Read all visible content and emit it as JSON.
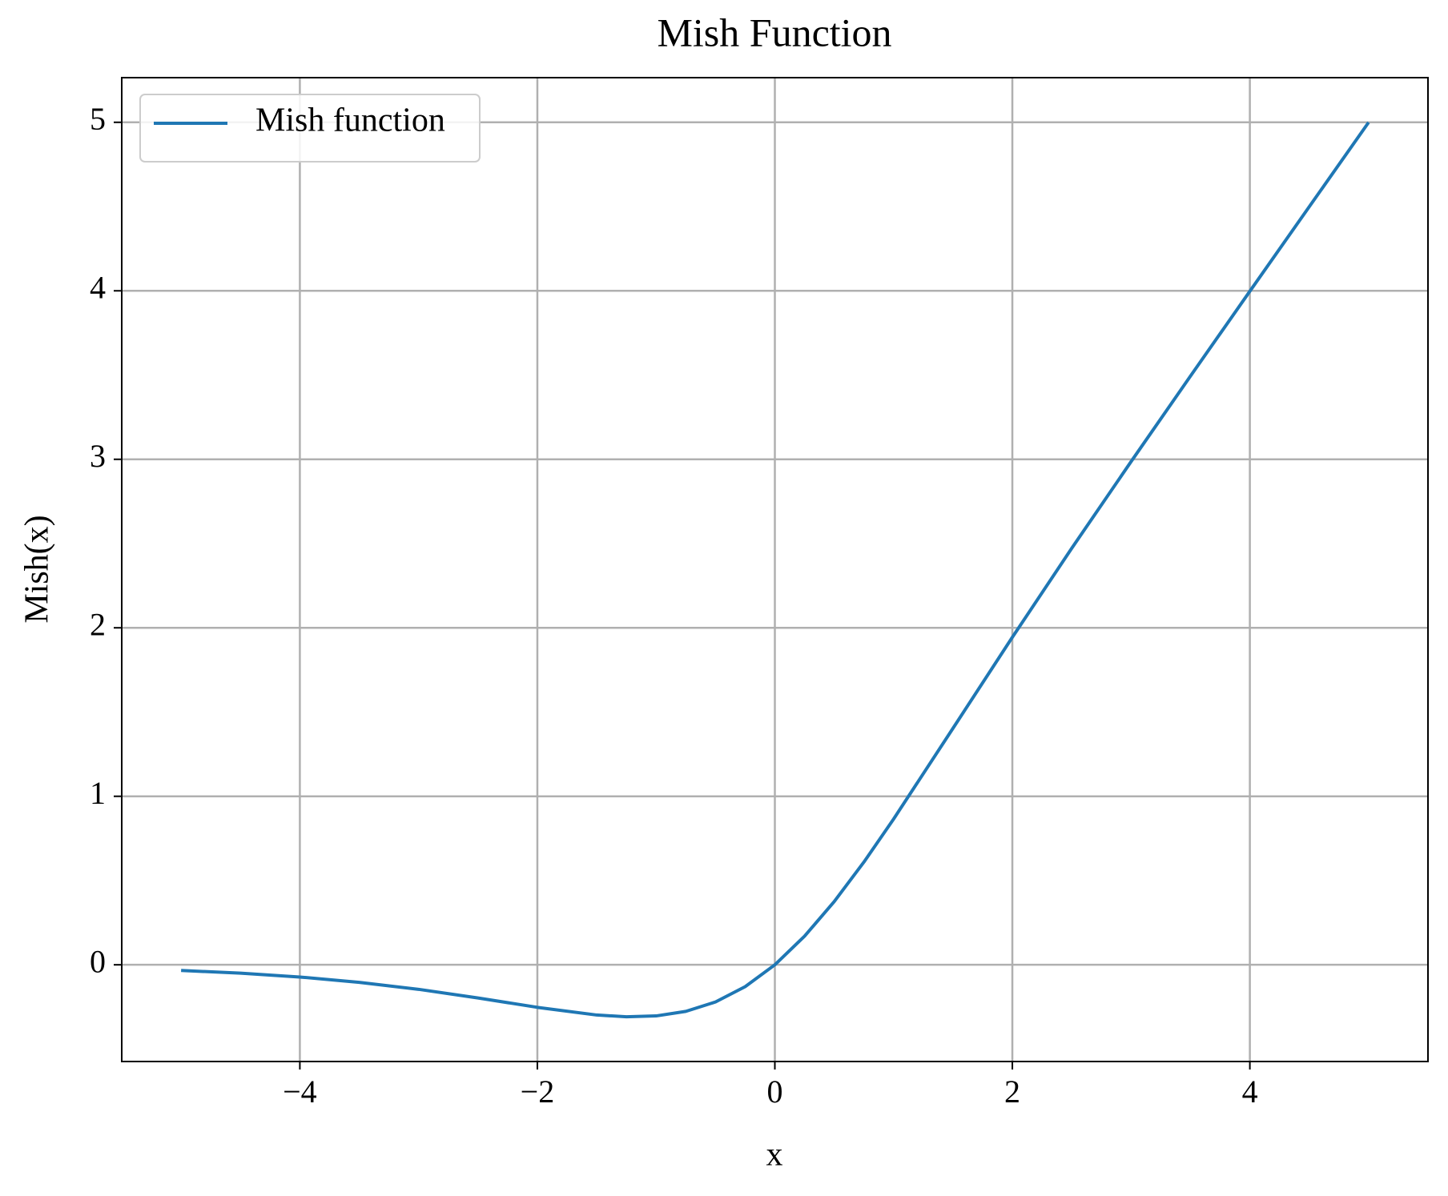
{
  "chart_data": {
    "type": "line",
    "title": "Mish Function",
    "x_label": "x",
    "y_label": "Mish(x)",
    "x": [
      -5,
      -4.5,
      -4,
      -3.5,
      -3,
      -2.5,
      -2,
      -1.5,
      -1.25,
      -1,
      -0.75,
      -0.5,
      -0.25,
      0,
      0.25,
      0.5,
      0.75,
      1,
      1.5,
      2,
      2.5,
      3,
      3.5,
      4,
      4.5,
      5
    ],
    "series": [
      {
        "name": "Mish function",
        "color": "#1f77b4",
        "values": [
          -0.0336,
          -0.0497,
          -0.0726,
          -0.1041,
          -0.1456,
          -0.1968,
          -0.2525,
          -0.2981,
          -0.3084,
          -0.3034,
          -0.2765,
          -0.2207,
          -0.1299,
          0,
          0.1696,
          0.3753,
          0.6098,
          0.8651,
          1.4036,
          1.9439,
          2.4718,
          2.9866,
          3.494,
          3.9974,
          4.4989,
          4.9996
        ]
      }
    ],
    "xlim": [
      -5.5,
      5.5
    ],
    "ylim": [
      -0.574,
      5.265
    ],
    "xticks": [
      {
        "value": -4,
        "label": "−4"
      },
      {
        "value": -2,
        "label": "−2"
      },
      0,
      2,
      4
    ],
    "yticks": [
      0,
      1,
      2,
      3,
      4,
      5
    ],
    "grid": true,
    "legend": "upper left"
  }
}
